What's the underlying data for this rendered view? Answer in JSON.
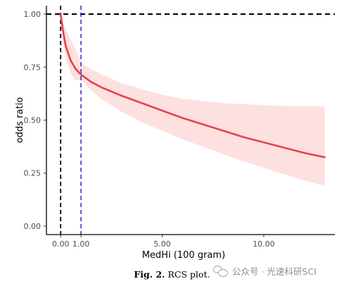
{
  "chart_data": {
    "type": "line",
    "title": "",
    "xlabel": "MedHi (100 gram)",
    "ylabel": "odds ratio",
    "xlim": [
      -0.7,
      13.5
    ],
    "ylim": [
      -0.04,
      1.04
    ],
    "x_ticks": [
      0.0,
      1.0,
      5.0,
      10.0
    ],
    "x_tick_labels": [
      "0.00",
      "1.00",
      "5.00",
      "10.00"
    ],
    "y_ticks": [
      0.0,
      0.25,
      0.5,
      0.75,
      1.0
    ],
    "y_tick_labels": [
      "0.00",
      "0.25",
      "0.50",
      "0.75",
      "1.00"
    ],
    "grid": false,
    "reference_lines": [
      {
        "orientation": "horizontal",
        "value": 1.0,
        "style": "dashed",
        "color": "#000000"
      },
      {
        "orientation": "vertical",
        "value": 0.0,
        "style": "dashed",
        "color": "#000000"
      },
      {
        "orientation": "vertical",
        "value": 1.0,
        "style": "dashed",
        "color": "#1a1acc"
      }
    ],
    "series": [
      {
        "color": "#e8414a",
        "band_color": "#fde0e0",
        "x": [
          0.0,
          0.1,
          0.25,
          0.5,
          0.75,
          1.0,
          1.5,
          2.0,
          3.0,
          4.0,
          5.0,
          6.0,
          7.0,
          8.0,
          9.0,
          10.0,
          11.0,
          12.0,
          13.0
        ],
        "y": [
          1.0,
          0.93,
          0.85,
          0.78,
          0.74,
          0.715,
          0.68,
          0.655,
          0.615,
          0.58,
          0.545,
          0.51,
          0.48,
          0.45,
          0.42,
          0.395,
          0.37,
          0.345,
          0.325
        ],
        "lower": [
          1.0,
          0.88,
          0.79,
          0.72,
          0.685,
          0.69,
          0.64,
          0.6,
          0.54,
          0.49,
          0.45,
          0.41,
          0.375,
          0.34,
          0.305,
          0.275,
          0.245,
          0.215,
          0.19
        ],
        "upper": [
          1.0,
          0.97,
          0.93,
          0.88,
          0.83,
          0.77,
          0.74,
          0.715,
          0.675,
          0.645,
          0.62,
          0.6,
          0.59,
          0.58,
          0.575,
          0.57,
          0.567,
          0.565,
          0.565
        ]
      }
    ]
  },
  "caption": {
    "label": "Fig. 2.",
    "text": "RCS plot."
  },
  "watermark": {
    "text": "公众号 · 光速科研SCI"
  }
}
